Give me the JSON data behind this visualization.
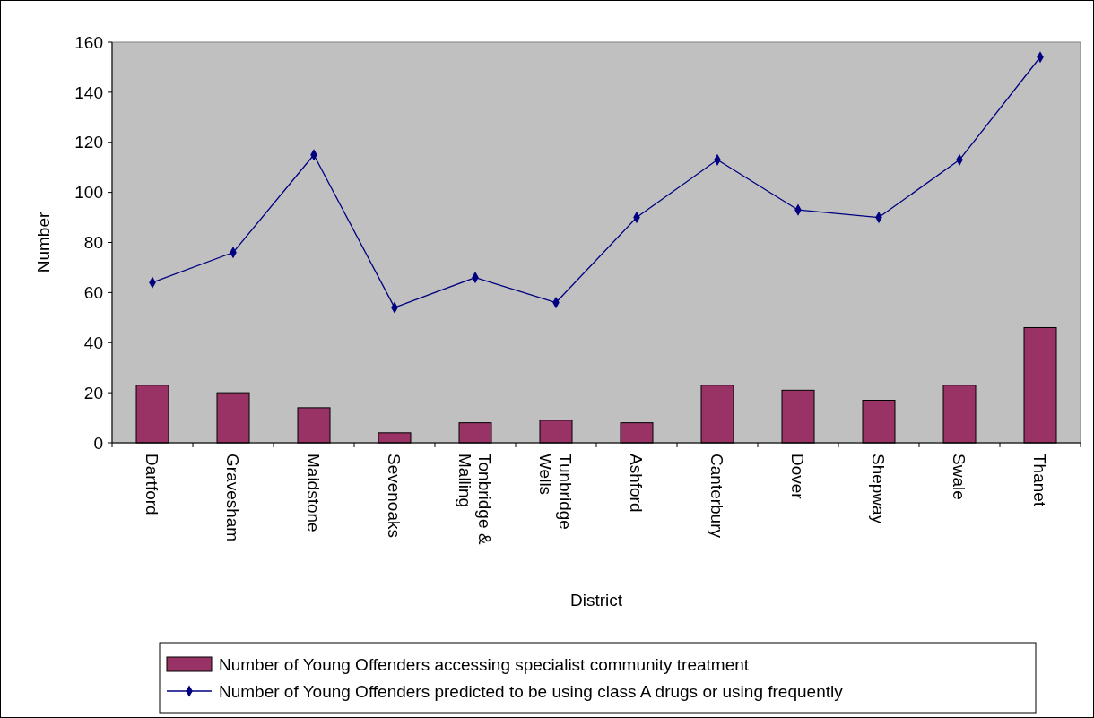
{
  "chart_data": {
    "type": "bar",
    "xlabel": "District",
    "ylabel": "Number",
    "categories": [
      "Dartford",
      "Gravesham",
      "Maidstone",
      "Sevenoaks",
      "Tonbridge & Malling",
      "Tunbridge Wells",
      "Ashford",
      "Canterbury",
      "Dover",
      "Shepway",
      "Swale",
      "Thanet"
    ],
    "series": [
      {
        "name": "Number of Young Offenders accessing specialist community treatment",
        "color": "#993366",
        "values": [
          23,
          20,
          14,
          4,
          8,
          9,
          8,
          23,
          21,
          17,
          23,
          46
        ]
      },
      {
        "name": "Number of Young Offenders predicted to be using class A drugs or using frequently",
        "type": "line",
        "color": "#000080",
        "marker": "diamond",
        "values": [
          64,
          76,
          115,
          54,
          66,
          56,
          90,
          113,
          93,
          90,
          113,
          154
        ]
      }
    ],
    "ylim": [
      0,
      160
    ],
    "yticks": [
      0,
      20,
      40,
      60,
      80,
      100,
      120,
      140,
      160
    ],
    "grid": false,
    "legend": "bottom"
  }
}
